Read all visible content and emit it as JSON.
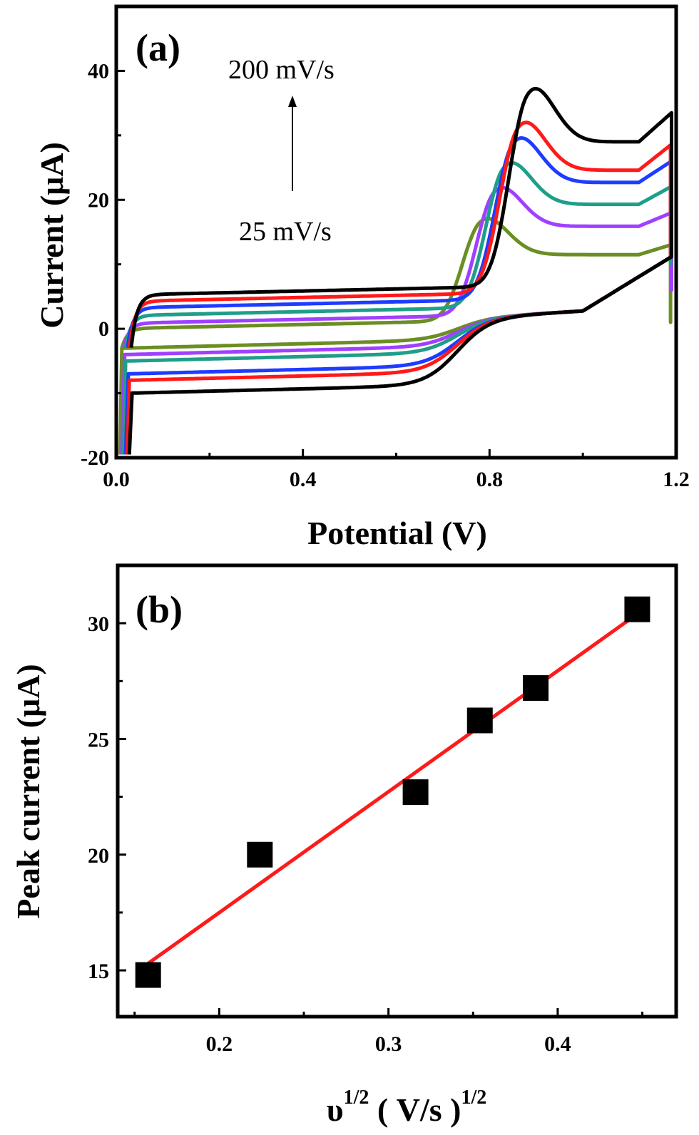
{
  "chart_data": [
    {
      "type": "line",
      "panel_label": "(a)",
      "xlabel": "Potential (V)",
      "ylabel": "Current (μA)",
      "xlim": [
        0.0,
        1.2
      ],
      "ylim": [
        -20,
        50
      ],
      "xticks": [
        0.0,
        0.4,
        0.8,
        1.2
      ],
      "xtick_labels": [
        "0.0",
        "0.4",
        "0.8",
        "1.2"
      ],
      "yticks": [
        -20,
        0,
        20,
        40
      ],
      "ytick_labels": [
        "-20",
        "0",
        "20",
        "40"
      ],
      "annotations": {
        "high": "200 mV/s",
        "low": "25 mV/s"
      },
      "scan_rates_order": "lowest to highest",
      "series": [
        {
          "color": "#6b8e23",
          "baseline_forward": 0.5,
          "baseline_reverse": -2.5,
          "peak_x": 0.78,
          "peak_current": 17.5,
          "end_current": 13,
          "reverse_wave_x": 0.73
        },
        {
          "color": "#a040ff",
          "baseline_forward": 1.3,
          "baseline_reverse": -3.5,
          "peak_x": 0.81,
          "peak_current": 22.5,
          "end_current": 18,
          "reverse_wave_x": 0.73
        },
        {
          "color": "#1f9e89",
          "baseline_forward": 2.5,
          "baseline_reverse": -4.5,
          "peak_x": 0.83,
          "peak_current": 26.5,
          "end_current": 22,
          "reverse_wave_x": 0.73
        },
        {
          "color": "#1e3cff",
          "baseline_forward": 3.7,
          "baseline_reverse": -6.5,
          "peak_x": 0.85,
          "peak_current": 30.5,
          "end_current": 26,
          "reverse_wave_x": 0.73
        },
        {
          "color": "#ff1a1a",
          "baseline_forward": 4.7,
          "baseline_reverse": -7.5,
          "peak_x": 0.86,
          "peak_current": 33,
          "end_current": 28.5,
          "reverse_wave_x": 0.73
        },
        {
          "color": "#000000",
          "baseline_forward": 5.7,
          "baseline_reverse": -9.5,
          "peak_x": 0.88,
          "peak_current": 38.5,
          "end_current": 33.5,
          "reverse_wave_x": 0.73
        }
      ]
    },
    {
      "type": "scatter",
      "panel_label": "(b)",
      "xlabel_base": "υ",
      "xlabel_exp": "1/2",
      "xlabel_mid": " ( V/s )",
      "xlabel_exp2": "1/2",
      "ylabel": "Peak current (μA)",
      "xlim": [
        0.14,
        0.47
      ],
      "ylim": [
        13,
        32.5
      ],
      "xticks": [
        0.2,
        0.3,
        0.4
      ],
      "xtick_labels": [
        "0.2",
        "0.3",
        "0.4"
      ],
      "yticks": [
        15,
        20,
        25,
        30
      ],
      "ytick_labels": [
        "15",
        "20",
        "25",
        "30"
      ],
      "points": [
        {
          "x": 0.158,
          "y": 14.8
        },
        {
          "x": 0.224,
          "y": 20.0
        },
        {
          "x": 0.316,
          "y": 22.7
        },
        {
          "x": 0.354,
          "y": 25.8
        },
        {
          "x": 0.387,
          "y": 27.2
        },
        {
          "x": 0.447,
          "y": 30.6
        }
      ],
      "marker_color": "#000000",
      "fit": {
        "x": [
          0.158,
          0.447
        ],
        "y": [
          15.3,
          30.4
        ],
        "color": "#ff1a1a"
      }
    }
  ]
}
